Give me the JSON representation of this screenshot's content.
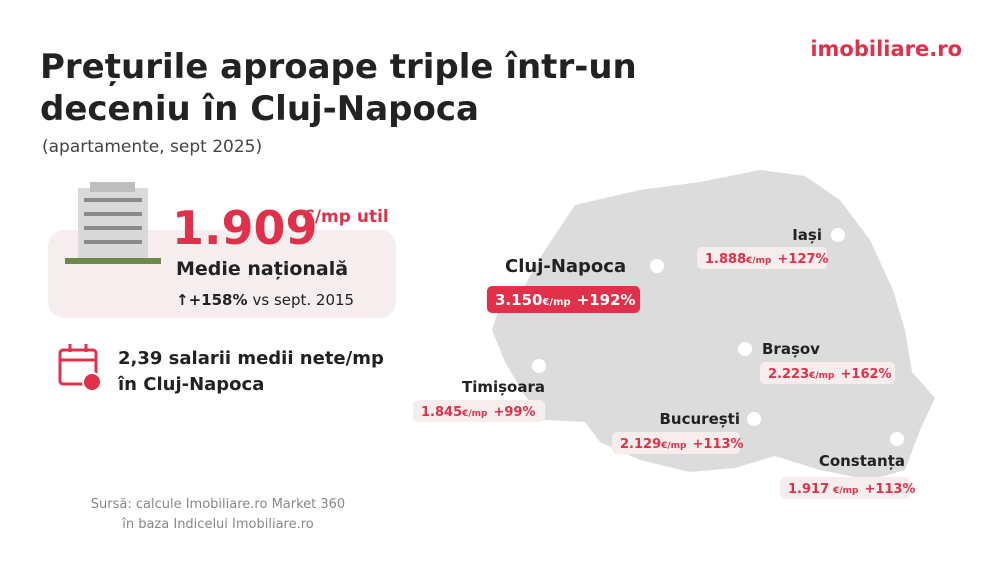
{
  "header": {
    "title_lines": [
      "Prețurile aproape triple într-un",
      "deceniu în Cluj-Napoca"
    ],
    "subtitle": "(apartamente, sept 2025)",
    "logo": "imobiliare.ro"
  },
  "national": {
    "price": "1.909",
    "unit": "€/mp util",
    "label": "Medie națională",
    "change": "↑+158%",
    "change_note": "vs sept. 2015"
  },
  "salary": {
    "line1": "2,39 salarii medii nete/mp",
    "line2": "în Cluj-Napoca"
  },
  "source": {
    "line1": "Sursă: calcule Imobiliare.ro Market 360",
    "line2": "în baza Indicelui Imobiliare.ro"
  },
  "cities": [
    {
      "name": "Cluj-Napoca",
      "price": "3.150",
      "unit": "€/mp",
      "change": "+192%"
    },
    {
      "name": "Iași",
      "price": "1.888",
      "unit": "€/mp",
      "change": "+127%"
    },
    {
      "name": "Brașov",
      "price": "2.223",
      "unit": "€/mp",
      "change": "+162%"
    },
    {
      "name": "Timișoara",
      "price": "1.845",
      "unit": "€/mp",
      "change": "+99%"
    },
    {
      "name": "București",
      "price": "2.129",
      "unit": "€/mp",
      "change": "+113%"
    },
    {
      "name": "Constanța",
      "price": "1.917",
      "unit": "€/mp",
      "change": "+113%"
    }
  ]
}
